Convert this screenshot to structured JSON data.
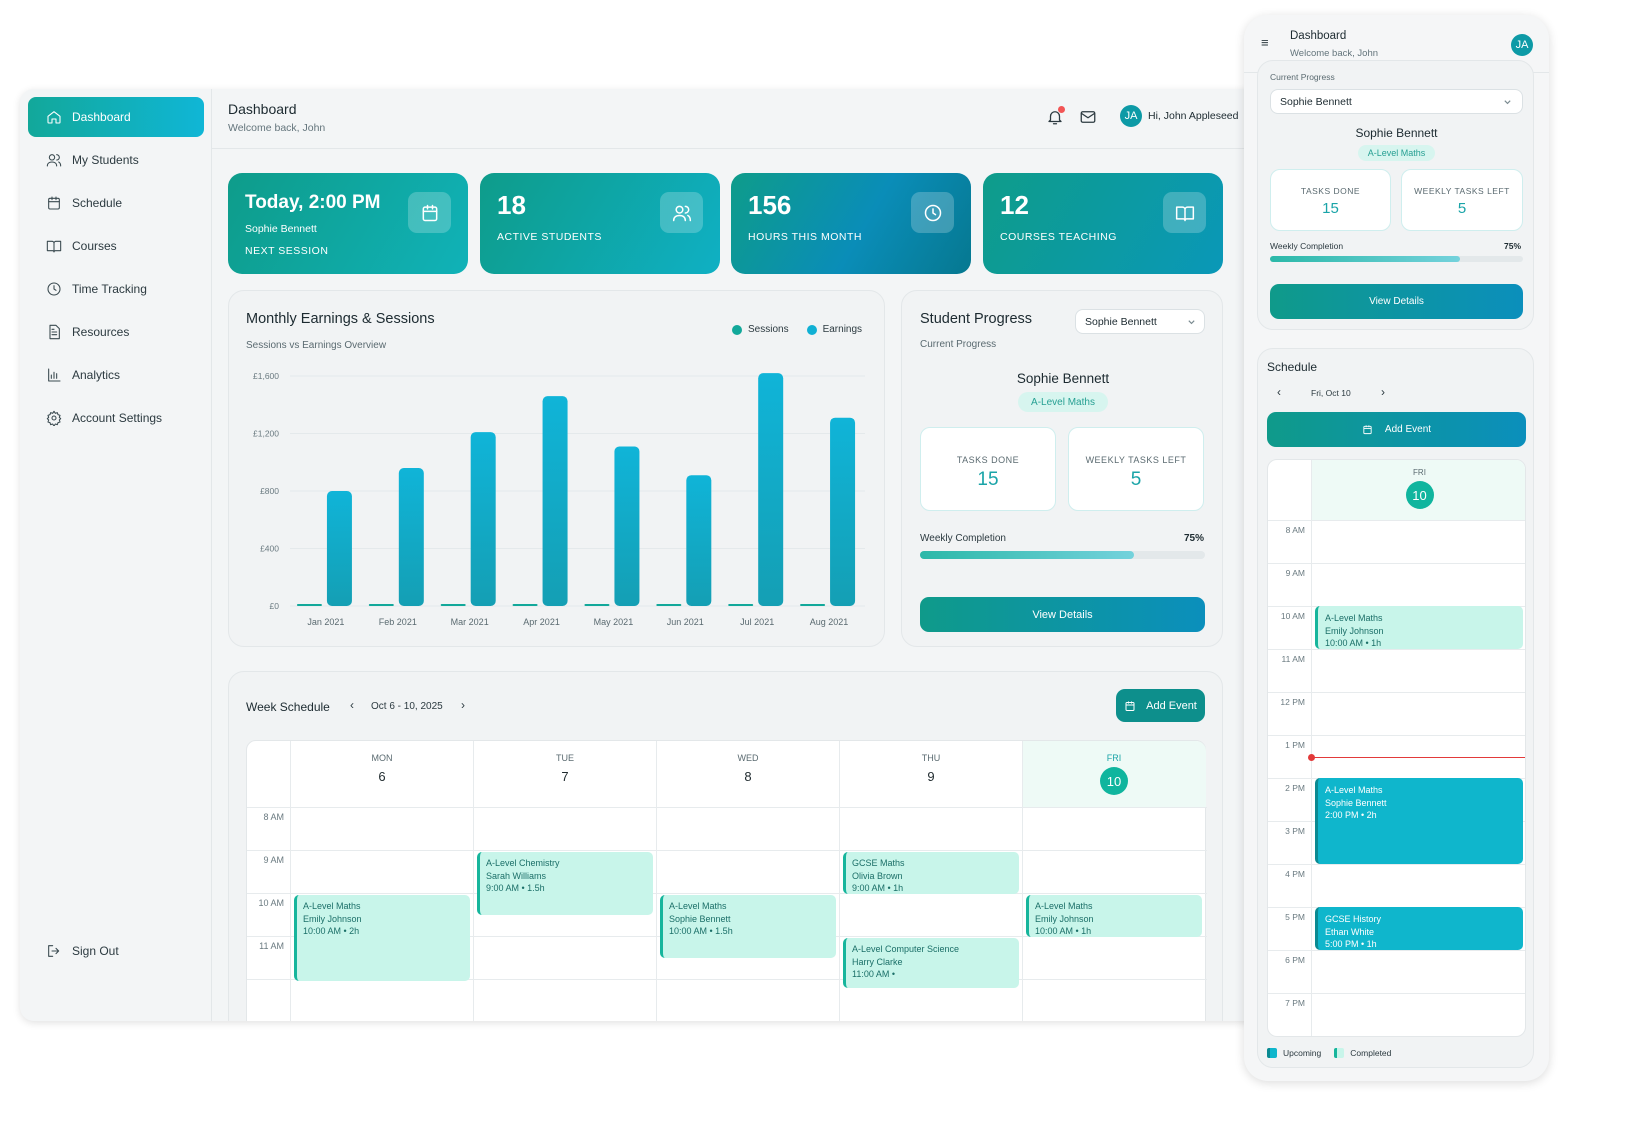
{
  "desktop": {
    "sidebar": {
      "items": [
        {
          "label": "Dashboard",
          "icon": "home-icon"
        },
        {
          "label": "My Students",
          "icon": "users-icon"
        },
        {
          "label": "Schedule",
          "icon": "calendar-icon"
        },
        {
          "label": "Courses",
          "icon": "book-icon"
        },
        {
          "label": "Time Tracking",
          "icon": "clock-icon"
        },
        {
          "label": "Resources",
          "icon": "document-icon"
        },
        {
          "label": "Analytics",
          "icon": "bar-chart-icon"
        },
        {
          "label": "Account Settings",
          "icon": "gear-icon"
        }
      ],
      "sign_out": "Sign Out"
    },
    "header": {
      "title": "Dashboard",
      "subtitle": "Welcome back, John",
      "avatar_initials": "JA",
      "greeting": "Hi, John Appleseed"
    },
    "stats": [
      {
        "value": "Today, 2:00 PM",
        "sub": "Sophie Bennett",
        "label": "NEXT SESSION",
        "icon": "calendar-icon"
      },
      {
        "value": "18",
        "label": "ACTIVE STUDENTS",
        "icon": "users-icon"
      },
      {
        "value": "156",
        "label": "HOURS THIS MONTH",
        "icon": "clock-icon"
      },
      {
        "value": "12",
        "label": "COURSES TEACHING",
        "icon": "book-icon"
      }
    ],
    "earnings": {
      "title": "Monthly Earnings & Sessions",
      "subtitle": "Sessions vs Earnings Overview"
    },
    "progress": {
      "title": "Student Progress",
      "subtitle": "Current Progress",
      "selected": "Sophie Bennett",
      "student": "Sophie Bennett",
      "course": "A-Level Maths",
      "tasks_done_label": "TASKS DONE",
      "tasks_done": "15",
      "weekly_left_label": "WEEKLY TASKS LEFT",
      "weekly_left": "5",
      "completion_label": "Weekly Completion",
      "completion_pct": "75%",
      "completion": 0.75,
      "button": "View Details"
    },
    "week": {
      "title": "Week Schedule",
      "range": "Oct 6 - 10, 2025",
      "add_event": "Add Event",
      "days": [
        {
          "dow": "MON",
          "num": "6"
        },
        {
          "dow": "TUE",
          "num": "7"
        },
        {
          "dow": "WED",
          "num": "8"
        },
        {
          "dow": "THU",
          "num": "9"
        },
        {
          "dow": "FRI",
          "num": "10"
        }
      ],
      "times": [
        "8 AM",
        "9 AM",
        "10 AM",
        "11 AM"
      ],
      "events": [
        {
          "course": "A-Level Maths",
          "student": "Emily Johnson",
          "time": "10:00 AM • 2h"
        },
        {
          "course": "A-Level Chemistry",
          "student": "Sarah Williams",
          "time": "9:00 AM • 1.5h"
        },
        {
          "course": "A-Level Maths",
          "student": "Sophie Bennett",
          "time": "10:00 AM • 1.5h"
        },
        {
          "course": "GCSE Maths",
          "student": "Olivia Brown",
          "time": "9:00 AM • 1h"
        },
        {
          "course": "A-Level Computer Science",
          "student": "Harry Clarke",
          "time": "11:00 AM •"
        },
        {
          "course": "A-Level Maths",
          "student": "Emily Johnson",
          "time": "10:00 AM • 1h"
        }
      ]
    }
  },
  "chart_data": {
    "type": "bar",
    "title": "Monthly Earnings & Sessions",
    "subtitle": "Sessions vs Earnings Overview",
    "categories": [
      "Jan 2021",
      "Feb 2021",
      "Mar 2021",
      "Apr 2021",
      "May 2021",
      "Jun 2021",
      "Jul 2021",
      "Aug 2021"
    ],
    "series": [
      {
        "name": "Sessions",
        "color": "#12a89a",
        "values": [
          12,
          14,
          16,
          20,
          18,
          12,
          24,
          22
        ]
      },
      {
        "name": "Earnings",
        "color": "#10b0d4",
        "values": [
          800,
          960,
          1210,
          1460,
          1110,
          910,
          1620,
          1310
        ]
      }
    ],
    "ytick_labels": [
      "£0",
      "£400",
      "£800",
      "£1,200",
      "£1,600"
    ],
    "ylim": [
      0,
      1600
    ],
    "legend": "top-right",
    "grid": true
  },
  "phone": {
    "header": {
      "title": "Dashboard",
      "subtitle": "Welcome back, John",
      "avatar_initials": "JA"
    },
    "progress": {
      "subtitle": "Current Progress",
      "selected": "Sophie Bennett",
      "student": "Sophie Bennett",
      "course": "A-Level Maths",
      "tasks_done_label": "TASKS DONE",
      "tasks_done": "15",
      "weekly_left_label": "WEEKLY TASKS LEFT",
      "weekly_left": "5",
      "completion_label": "Weekly Completion",
      "completion_pct": "75%",
      "completion": 0.75,
      "button": "View Details"
    },
    "schedule": {
      "title": "Schedule",
      "date": "Fri, Oct 10",
      "add_event": "Add Event",
      "day": {
        "dow": "FRI",
        "num": "10"
      },
      "times": [
        "8 AM",
        "9 AM",
        "10 AM",
        "11 AM",
        "12 PM",
        "1 PM",
        "2 PM",
        "3 PM",
        "4 PM",
        "5 PM",
        "6 PM",
        "7 PM"
      ],
      "events": [
        {
          "course": "A-Level Maths",
          "student": "Emily Johnson",
          "time": "10:00 AM • 1h"
        },
        {
          "course": "A-Level Maths",
          "student": "Sophie Bennett",
          "time": "2:00 PM • 2h"
        },
        {
          "course": "GCSE History",
          "student": "Ethan White",
          "time": "5:00 PM • 1h"
        }
      ],
      "legend": {
        "upcoming": "Upcoming",
        "completed": "Completed"
      }
    }
  }
}
